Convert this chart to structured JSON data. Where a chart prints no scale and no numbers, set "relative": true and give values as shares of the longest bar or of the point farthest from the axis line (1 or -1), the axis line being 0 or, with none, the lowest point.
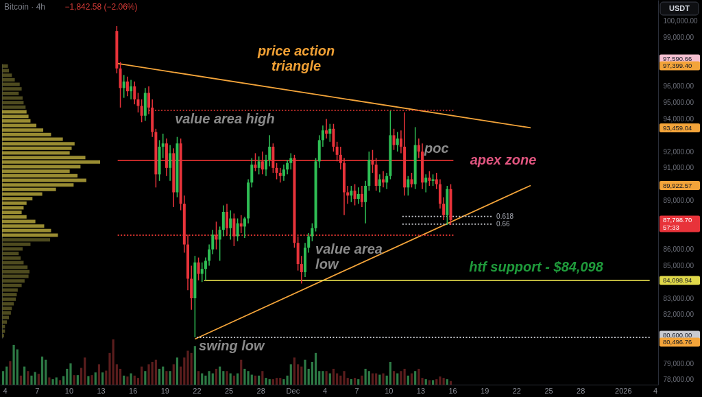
{
  "chart_data": [
    {
      "type": "candlestick",
      "title": "Bitcoin · 4h",
      "subtitle": "−1,842.58 (−2.06%)",
      "ylabel": "USDT",
      "x": [
        "2025-11-14T12:00",
        "2025-11-14T20:00",
        "2025-11-15T04:00",
        "2025-11-15T12:00",
        "2025-11-15T20:00",
        "2025-11-16T04:00",
        "2025-11-16T12:00",
        "2025-11-16T20:00",
        "2025-11-17T04:00",
        "2025-11-17T12:00",
        "2025-11-17T20:00",
        "2025-11-18T04:00",
        "2025-11-18T12:00",
        "2025-11-18T20:00",
        "2025-11-19T04:00",
        "2025-11-19T12:00",
        "2025-11-19T20:00",
        "2025-11-20T04:00",
        "2025-11-20T12:00",
        "2025-11-20T20:00",
        "2025-11-21T04:00",
        "2025-11-21T12:00",
        "2025-11-21T20:00",
        "2025-11-22T04:00",
        "2025-11-22T12:00",
        "2025-11-22T20:00",
        "2025-11-23T04:00",
        "2025-11-23T12:00",
        "2025-11-23T20:00",
        "2025-11-24T04:00",
        "2025-11-24T12:00",
        "2025-11-24T20:00",
        "2025-11-25T04:00",
        "2025-11-25T12:00",
        "2025-11-25T20:00",
        "2025-11-26T04:00",
        "2025-11-26T12:00",
        "2025-11-26T20:00",
        "2025-11-27T04:00",
        "2025-11-27T12:00",
        "2025-11-27T20:00",
        "2025-11-28T04:00",
        "2025-11-28T12:00",
        "2025-11-28T20:00",
        "2025-11-29T04:00",
        "2025-11-29T12:00",
        "2025-11-29T20:00",
        "2025-11-30T04:00",
        "2025-11-30T12:00",
        "2025-11-30T20:00",
        "2025-12-01T04:00",
        "2025-12-01T12:00",
        "2025-12-01T20:00",
        "2025-12-02T04:00",
        "2025-12-02T12:00",
        "2025-12-02T20:00",
        "2025-12-03T04:00",
        "2025-12-03T12:00",
        "2025-12-03T20:00",
        "2025-12-04T04:00",
        "2025-12-04T12:00",
        "2025-12-04T20:00",
        "2025-12-05T04:00",
        "2025-12-05T12:00",
        "2025-12-05T20:00",
        "2025-12-06T04:00",
        "2025-12-06T12:00",
        "2025-12-06T20:00",
        "2025-12-07T04:00",
        "2025-12-07T12:00",
        "2025-12-07T20:00",
        "2025-12-08T04:00",
        "2025-12-08T12:00",
        "2025-12-08T20:00",
        "2025-12-09T04:00",
        "2025-12-09T12:00",
        "2025-12-09T20:00",
        "2025-12-10T04:00",
        "2025-12-10T12:00",
        "2025-12-10T20:00",
        "2025-12-11T04:00",
        "2025-12-11T12:00",
        "2025-12-11T20:00",
        "2025-12-12T04:00",
        "2025-12-12T12:00",
        "2025-12-12T20:00",
        "2025-12-13T04:00",
        "2025-12-13T12:00",
        "2025-12-13T20:00",
        "2025-12-14T04:00",
        "2025-12-14T12:00",
        "2025-12-14T20:00",
        "2025-12-15T04:00",
        "2025-12-15T12:00",
        "2025-12-15T20:00"
      ],
      "ohlc": [
        [
          99400,
          99700,
          96800,
          97100
        ],
        [
          97100,
          97500,
          94700,
          95900
        ],
        [
          95900,
          96700,
          95300,
          96300
        ],
        [
          96300,
          96600,
          95400,
          95700
        ],
        [
          95700,
          96400,
          95200,
          96000
        ],
        [
          96000,
          96300,
          94900,
          95200
        ],
        [
          95200,
          95600,
          94400,
          94800
        ],
        [
          94800,
          95200,
          93800,
          94200
        ],
        [
          94200,
          95900,
          93900,
          95600
        ],
        [
          95600,
          96000,
          94300,
          94700
        ],
        [
          94700,
          95200,
          92900,
          93200
        ],
        [
          93200,
          93400,
          89800,
          90600
        ],
        [
          90600,
          92700,
          90200,
          92300
        ],
        [
          92300,
          93100,
          91600,
          92500
        ],
        [
          92500,
          92800,
          90500,
          91000
        ],
        [
          91000,
          92400,
          90200,
          91900
        ],
        [
          91900,
          92200,
          88600,
          89500
        ],
        [
          89500,
          92900,
          89200,
          92500
        ],
        [
          92500,
          92800,
          88400,
          88800
        ],
        [
          88800,
          89300,
          85800,
          86300
        ],
        [
          86300,
          86900,
          83500,
          84200
        ],
        [
          84200,
          85000,
          82300,
          83000
        ],
        [
          83000,
          85600,
          80600,
          85200
        ],
        [
          85200,
          85500,
          84100,
          84500
        ],
        [
          84500,
          85200,
          84000,
          84800
        ],
        [
          84800,
          85500,
          84100,
          85300
        ],
        [
          85300,
          86300,
          85000,
          86000
        ],
        [
          86000,
          87200,
          85700,
          86900
        ],
        [
          86900,
          87700,
          86000,
          86600
        ],
        [
          86600,
          87400,
          85300,
          87200
        ],
        [
          87200,
          88700,
          86800,
          88300
        ],
        [
          88300,
          88800,
          86900,
          87300
        ],
        [
          87300,
          88400,
          86600,
          87900
        ],
        [
          87900,
          88200,
          86200,
          86800
        ],
        [
          86800,
          87900,
          86500,
          87600
        ],
        [
          87600,
          88100,
          87000,
          87400
        ],
        [
          87400,
          88000,
          86700,
          87900
        ],
        [
          87900,
          90300,
          87600,
          90100
        ],
        [
          90100,
          91600,
          89800,
          91200
        ],
        [
          91200,
          91900,
          90800,
          91000
        ],
        [
          91000,
          91700,
          90600,
          91400
        ],
        [
          91400,
          92000,
          90600,
          90900
        ],
        [
          90900,
          91800,
          90500,
          91500
        ],
        [
          91500,
          93000,
          91100,
          92300
        ],
        [
          92300,
          92500,
          90700,
          91000
        ],
        [
          91000,
          91300,
          90300,
          90700
        ],
        [
          90700,
          91000,
          90100,
          90500
        ],
        [
          90500,
          91200,
          90200,
          90900
        ],
        [
          90900,
          91500,
          90600,
          91300
        ],
        [
          91300,
          91900,
          90900,
          91600
        ],
        [
          91600,
          91800,
          86100,
          86400
        ],
        [
          86400,
          86800,
          84700,
          85100
        ],
        [
          85100,
          85600,
          83900,
          84600
        ],
        [
          84600,
          86400,
          84300,
          86100
        ],
        [
          86100,
          87000,
          85800,
          86800
        ],
        [
          86800,
          87600,
          86500,
          87300
        ],
        [
          87300,
          91600,
          87100,
          91400
        ],
        [
          91400,
          93000,
          91000,
          92700
        ],
        [
          92700,
          93600,
          92300,
          93300
        ],
        [
          93300,
          94000,
          92800,
          93100
        ],
        [
          93100,
          93700,
          92600,
          93400
        ],
        [
          93400,
          93700,
          92000,
          92300
        ],
        [
          92300,
          92600,
          91400,
          91800
        ],
        [
          91800,
          92300,
          90900,
          91300
        ],
        [
          91300,
          91600,
          88100,
          89500
        ],
        [
          89500,
          89900,
          88800,
          89300
        ],
        [
          89300,
          89900,
          88900,
          89600
        ],
        [
          89600,
          90000,
          88700,
          89100
        ],
        [
          89100,
          89800,
          88800,
          89400
        ],
        [
          89400,
          89900,
          88600,
          88900
        ],
        [
          88900,
          90200,
          87600,
          89900
        ],
        [
          89900,
          92000,
          89600,
          91500
        ],
        [
          91500,
          92100,
          90700,
          91200
        ],
        [
          91200,
          91600,
          89600,
          89900
        ],
        [
          89900,
          90600,
          89500,
          90300
        ],
        [
          90300,
          90800,
          89800,
          90100
        ],
        [
          90100,
          90700,
          89700,
          90500
        ],
        [
          90500,
          94500,
          90300,
          93000
        ],
        [
          93000,
          93400,
          92100,
          92400
        ],
        [
          92400,
          93200,
          92000,
          92800
        ],
        [
          92800,
          93300,
          91900,
          92300
        ],
        [
          92300,
          94400,
          89300,
          89800
        ],
        [
          89800,
          90500,
          89300,
          90300
        ],
        [
          90300,
          90700,
          89800,
          90000
        ],
        [
          90000,
          93500,
          89700,
          92400
        ],
        [
          92400,
          92800,
          91600,
          92000
        ],
        [
          92000,
          92500,
          89700,
          90100
        ],
        [
          90100,
          90600,
          89500,
          90400
        ],
        [
          90400,
          90800,
          89900,
          90200
        ],
        [
          90200,
          90600,
          89900,
          90300
        ],
        [
          90300,
          90700,
          89700,
          90000
        ],
        [
          90000,
          90300,
          88500,
          88800
        ],
        [
          88800,
          89200,
          87800,
          88100
        ],
        [
          88100,
          89900,
          87500,
          89700
        ],
        [
          89700,
          90000,
          87500,
          87798.7
        ]
      ],
      "colors": [
        "#e8333a",
        "#e8333a",
        "#2fbf55",
        "#e8333a",
        "#2fbf55",
        "#e8333a",
        "#e8333a",
        "#e8333a",
        "#2fbf55",
        "#e8333a",
        "#e8333a",
        "#e8333a",
        "#2fbf55",
        "#2fbf55",
        "#e8333a",
        "#2fbf55",
        "#e8333a",
        "#2fbf55",
        "#e8333a",
        "#e8333a",
        "#e8333a",
        "#e8333a",
        "#2fbf55",
        "#e8333a",
        "#2fbf55",
        "#2fbf55",
        "#2fbf55",
        "#2fbf55",
        "#e8333a",
        "#2fbf55",
        "#2fbf55",
        "#e8333a",
        "#2fbf55",
        "#e8333a",
        "#2fbf55",
        "#e8333a",
        "#2fbf55",
        "#2fbf55",
        "#2fbf55",
        "#e8333a",
        "#2fbf55",
        "#e8333a",
        "#2fbf55",
        "#2fbf55",
        "#e8333a",
        "#e8333a",
        "#e8333a",
        "#2fbf55",
        "#2fbf55",
        "#2fbf55",
        "#e8333a",
        "#e8333a",
        "#e8333a",
        "#2fbf55",
        "#2fbf55",
        "#2fbf55",
        "#2fbf55",
        "#2fbf55",
        "#2fbf55",
        "#e8333a",
        "#2fbf55",
        "#e8333a",
        "#e8333a",
        "#e8333a",
        "#e8333a",
        "#e8333a",
        "#2fbf55",
        "#e8333a",
        "#2fbf55",
        "#e8333a",
        "#2fbf55",
        "#2fbf55",
        "#e8333a",
        "#e8333a",
        "#2fbf55",
        "#e8333a",
        "#2fbf55",
        "#2fbf55",
        "#e8333a",
        "#2fbf55",
        "#e8333a",
        "#e8333a",
        "#2fbf55",
        "#e8333a",
        "#2fbf55",
        "#e8333a",
        "#e8333a",
        "#2fbf55",
        "#e8333a",
        "#2fbf55",
        "#e8333a",
        "#e8333a",
        "#e8333a",
        "#2fbf55",
        "#e8333a"
      ],
      "series": [
        {
          "type": "line",
          "x": [
            "2025-11-14T14:00",
            "2025-12-23T08:00"
          ],
          "values": [
            97399.4,
            93459.04
          ],
          "color": "#f3a43a",
          "line_style": "solid"
        },
        {
          "type": "line",
          "x": [
            "2025-11-21T20:00",
            "2025-12-23T08:00"
          ],
          "values": [
            80496.76,
            89922.57
          ],
          "color": "#f3a43a",
          "line_style": "solid"
        },
        {
          "type": "line",
          "x": [
            "2025-11-17T12:00",
            "2025-12-16T02:00"
          ],
          "values": [
            94530,
            94530
          ],
          "color": "#d9342f",
          "line_style": "dotted"
        },
        {
          "type": "line",
          "name": "poc",
          "x": [
            "2025-11-14T14:00",
            "2025-12-16T02:00"
          ],
          "values": [
            91460,
            91460
          ],
          "color": "#e5302f",
          "line_style": "solid"
        },
        {
          "type": "line",
          "name": "value area\nlow",
          "x": [
            "2025-11-14T14:00",
            "2025-12-16T02:00"
          ],
          "values": [
            86870,
            86870
          ],
          "color": "#d9342f",
          "line_style": "dotted"
        },
        {
          "type": "line",
          "name": "0.618",
          "x": [
            "2025-12-11T07:00",
            "2025-12-19T16:00"
          ],
          "values": [
            88020,
            88020
          ],
          "color": "#c9cbd1",
          "line_style": "dotted"
        },
        {
          "type": "line",
          "name": "0.66",
          "x": [
            "2025-12-11T07:00",
            "2025-12-19T16:00"
          ],
          "values": [
            87550,
            87550
          ],
          "color": "#c9cbd1",
          "line_style": "dotted"
        },
        {
          "type": "line",
          "name": "htf support - $84,098",
          "x": [
            "2025-11-22T17:00",
            "2026-01-03T12:00"
          ],
          "values": [
            84098.94,
            84098.94
          ],
          "color": "#e0d84a",
          "line_style": "solid"
        },
        {
          "type": "line",
          "name": "swing low",
          "x": [
            "2025-11-22T00:00",
            "2026-01-03T12:00"
          ],
          "values": [
            80600,
            80600
          ],
          "color": "#c9cbd1",
          "line_style": "dotted"
        }
      ],
      "xlim": [
        "2025-11-03T13:00",
        "2026-01-04T07:00"
      ],
      "ylim": [
        77700,
        101300
      ],
      "xticks": [
        {
          "value": "2025-11-04",
          "label": "4"
        },
        {
          "value": "2025-11-07",
          "label": "7"
        },
        {
          "value": "2025-11-10",
          "label": "10"
        },
        {
          "value": "2025-11-13",
          "label": "13"
        },
        {
          "value": "2025-11-16",
          "label": "16"
        },
        {
          "value": "2025-11-19",
          "label": "19"
        },
        {
          "value": "2025-11-22",
          "label": "22"
        },
        {
          "value": "2025-11-25",
          "label": "25"
        },
        {
          "value": "2025-11-28",
          "label": "28"
        },
        {
          "value": "2025-12-01",
          "label": "Dec"
        },
        {
          "value": "2025-12-04",
          "label": "4"
        },
        {
          "value": "2025-12-07",
          "label": "7"
        },
        {
          "value": "2025-12-10",
          "label": "10"
        },
        {
          "value": "2025-12-13",
          "label": "13"
        },
        {
          "value": "2025-12-16",
          "label": "16"
        },
        {
          "value": "2025-12-19",
          "label": "19"
        },
        {
          "value": "2025-12-22",
          "label": "22"
        },
        {
          "value": "2025-12-25",
          "label": "25"
        },
        {
          "value": "2025-12-28",
          "label": "28"
        },
        {
          "value": "2026-01-01",
          "label": "2026"
        },
        {
          "value": "2026-01-04",
          "label": "4"
        }
      ],
      "yticks": [
        {
          "value": 78000,
          "label": "78,000.00"
        },
        {
          "value": 79000,
          "label": "79,000.00"
        },
        {
          "value": 80496.76,
          "label": "80,496.76"
        },
        {
          "value": 80600,
          "label": "80,600.00"
        },
        {
          "value": 82000,
          "label": "82,000.00"
        },
        {
          "value": 83000,
          "label": "83,000.00"
        },
        {
          "value": 84098.94,
          "label": "84,098.94"
        },
        {
          "value": 85000,
          "label": "85,000.00"
        },
        {
          "value": 86000,
          "label": "86,000.00"
        },
        {
          "value": 87798.7,
          "label": "87,798.70\n57:33"
        },
        {
          "value": 89000,
          "label": "89,000.00"
        },
        {
          "value": 89922.57,
          "label": "89,922.57"
        },
        {
          "value": 91000,
          "label": "91,000.00"
        },
        {
          "value": 92000,
          "label": "92,000.00"
        },
        {
          "value": 93459.04,
          "label": "93,459.04"
        },
        {
          "value": 94000,
          "label": "94,000.00"
        },
        {
          "value": 95000,
          "label": "95,000.00"
        },
        {
          "value": 96000,
          "label": "96,000.00"
        },
        {
          "value": 97399.4,
          "label": "97,399.40"
        },
        {
          "value": 97590.66,
          "label": "97,590.66"
        },
        {
          "value": 99000,
          "label": "99,000.00"
        },
        {
          "value": 100000,
          "label": "100,000.00"
        }
      ],
      "annotations": [
        "price action\ntriangle",
        "value area high",
        "apex zone"
      ]
    },
    {
      "type": "bar",
      "relative": true,
      "tick_labels": false,
      "xlim": [
        "2025-11-03T13:00",
        "2026-01-04T07:00"
      ],
      "x": [
        "2025-11-03T20:00",
        "2025-11-04T04:00",
        "2025-11-04T12:00",
        "2025-11-04T20:00",
        "2025-11-05T04:00",
        "2025-11-05T12:00",
        "2025-11-05T20:00",
        "2025-11-06T04:00",
        "2025-11-06T12:00",
        "2025-11-06T20:00",
        "2025-11-07T04:00",
        "2025-11-07T12:00",
        "2025-11-07T20:00",
        "2025-11-08T04:00",
        "2025-11-08T12:00",
        "2025-11-08T20:00",
        "2025-11-09T04:00",
        "2025-11-09T12:00",
        "2025-11-09T20:00",
        "2025-11-10T04:00",
        "2025-11-10T12:00",
        "2025-11-10T20:00",
        "2025-11-11T04:00",
        "2025-11-11T12:00",
        "2025-11-11T20:00",
        "2025-11-12T04:00",
        "2025-11-12T12:00",
        "2025-11-12T20:00",
        "2025-11-13T04:00",
        "2025-11-13T12:00",
        "2025-11-13T20:00",
        "2025-11-14T04:00",
        "2025-11-14T12:00",
        "2025-11-14T20:00",
        "2025-11-15T04:00",
        "2025-11-15T12:00",
        "2025-11-15T20:00",
        "2025-11-16T04:00",
        "2025-11-16T12:00",
        "2025-11-16T20:00",
        "2025-11-17T04:00",
        "2025-11-17T12:00",
        "2025-11-17T20:00",
        "2025-11-18T04:00",
        "2025-11-18T12:00",
        "2025-11-18T20:00",
        "2025-11-19T04:00",
        "2025-11-19T12:00",
        "2025-11-19T20:00",
        "2025-11-20T04:00",
        "2025-11-20T12:00",
        "2025-11-20T20:00",
        "2025-11-21T04:00",
        "2025-11-21T12:00",
        "2025-11-21T20:00",
        "2025-11-22T04:00",
        "2025-11-22T12:00",
        "2025-11-22T20:00",
        "2025-11-23T04:00",
        "2025-11-23T12:00",
        "2025-11-23T20:00",
        "2025-11-24T04:00",
        "2025-11-24T12:00",
        "2025-11-24T20:00",
        "2025-11-25T04:00",
        "2025-11-25T12:00",
        "2025-11-25T20:00",
        "2025-11-26T04:00",
        "2025-11-26T12:00",
        "2025-11-26T20:00",
        "2025-11-27T04:00",
        "2025-11-27T12:00",
        "2025-11-27T20:00",
        "2025-11-28T04:00",
        "2025-11-28T12:00",
        "2025-11-28T20:00",
        "2025-11-29T04:00",
        "2025-11-29T12:00",
        "2025-11-29T20:00",
        "2025-11-30T04:00",
        "2025-11-30T12:00",
        "2025-11-30T20:00",
        "2025-12-01T04:00",
        "2025-12-01T12:00",
        "2025-12-01T20:00",
        "2025-12-02T04:00",
        "2025-12-02T12:00",
        "2025-12-02T20:00",
        "2025-12-03T04:00",
        "2025-12-03T12:00",
        "2025-12-03T20:00",
        "2025-12-04T04:00",
        "2025-12-04T12:00",
        "2025-12-04T20:00",
        "2025-12-05T04:00",
        "2025-12-05T12:00",
        "2025-12-05T20:00",
        "2025-12-06T04:00",
        "2025-12-06T12:00",
        "2025-12-06T20:00",
        "2025-12-07T04:00",
        "2025-12-07T12:00",
        "2025-12-07T20:00",
        "2025-12-08T04:00",
        "2025-12-08T12:00",
        "2025-12-08T20:00",
        "2025-12-09T04:00",
        "2025-12-09T12:00",
        "2025-12-09T20:00",
        "2025-12-10T04:00",
        "2025-12-10T12:00",
        "2025-12-10T20:00",
        "2025-12-11T04:00",
        "2025-12-11T12:00",
        "2025-12-11T20:00",
        "2025-12-12T04:00",
        "2025-12-12T12:00",
        "2025-12-12T20:00",
        "2025-12-13T04:00",
        "2025-12-13T12:00",
        "2025-12-13T20:00",
        "2025-12-14T04:00",
        "2025-12-14T12:00",
        "2025-12-14T20:00",
        "2025-12-15T04:00",
        "2025-12-15T12:00",
        "2025-12-15T20:00"
      ],
      "values": [
        0.3,
        0.4,
        0.52,
        0.88,
        0.78,
        0.2,
        0.4,
        0.3,
        0.2,
        0.28,
        0.24,
        0.62,
        0.55,
        0.16,
        0.12,
        0.16,
        0.1,
        0.19,
        0.35,
        0.47,
        0.21,
        0.21,
        0.37,
        0.6,
        0.19,
        0.21,
        0.27,
        0.45,
        0.27,
        0.31,
        0.7,
        1,
        0.45,
        0.35,
        0.2,
        0.18,
        0.25,
        0.2,
        0.15,
        0.4,
        0.3,
        0.45,
        0.5,
        0.55,
        0.35,
        0.4,
        0.3,
        0.3,
        0.45,
        0.6,
        0.4,
        0.6,
        0.75,
        0.7,
        0.85,
        0.3,
        0.25,
        0.2,
        0.3,
        0.25,
        0.35,
        0.4,
        0.3,
        0.3,
        0.25,
        0.2,
        0.25,
        0.55,
        0.35,
        0.3,
        0.22,
        0.2,
        0.2,
        0.3,
        0.15,
        0.12,
        0.12,
        0.15,
        0.15,
        0.12,
        0.2,
        0.45,
        0.6,
        0.45,
        0.4,
        0.55,
        0.35,
        0.5,
        0.7,
        0.3,
        0.3,
        0.3,
        0.25,
        0.35,
        0.25,
        0.2,
        0.3,
        0.15,
        0.12,
        0.15,
        0.12,
        0.2,
        0.35,
        0.3,
        0.25,
        0.25,
        0.22,
        0.25,
        0.2,
        0.5,
        0.3,
        0.25,
        0.3,
        0.35,
        0.2,
        0.25,
        0.3,
        0.35,
        0.15,
        0.12,
        0.1,
        0.1,
        0.12,
        0.18,
        0.15,
        0.12,
        0.08
      ],
      "colors": [
        "#2d7a45",
        "#2d7a45",
        "#5b1d1d",
        "#2d7a45",
        "#2d7a45",
        "#5b1d1d",
        "#2d7a45",
        "#5b1d1d",
        "#2d7a45",
        "#2d7a45",
        "#5b1d1d",
        "#2d7a45",
        "#2d7a45",
        "#5b1d1d",
        "#2d7a45",
        "#2d7a45",
        "#5b1d1d",
        "#2d7a45",
        "#2d7a45",
        "#2d7a45",
        "#5b1d1d",
        "#2d7a45",
        "#5b1d1d",
        "#5b1d1d",
        "#2d7a45",
        "#5b1d1d",
        "#2d7a45",
        "#5b1d1d",
        "#2d7a45",
        "#5b1d1d",
        "#5b1d1d",
        "#5b1d1d",
        "#5b1d1d",
        "#5b1d1d",
        "#2d7a45",
        "#5b1d1d",
        "#2d7a45",
        "#5b1d1d",
        "#5b1d1d",
        "#5b1d1d",
        "#2d7a45",
        "#5b1d1d",
        "#5b1d1d",
        "#5b1d1d",
        "#2d7a45",
        "#2d7a45",
        "#5b1d1d",
        "#2d7a45",
        "#5b1d1d",
        "#2d7a45",
        "#5b1d1d",
        "#5b1d1d",
        "#5b1d1d",
        "#5b1d1d",
        "#2d7a45",
        "#5b1d1d",
        "#2d7a45",
        "#2d7a45",
        "#2d7a45",
        "#2d7a45",
        "#5b1d1d",
        "#2d7a45",
        "#2d7a45",
        "#5b1d1d",
        "#2d7a45",
        "#5b1d1d",
        "#2d7a45",
        "#5b1d1d",
        "#2d7a45",
        "#2d7a45",
        "#2d7a45",
        "#5b1d1d",
        "#2d7a45",
        "#5b1d1d",
        "#2d7a45",
        "#2d7a45",
        "#5b1d1d",
        "#5b1d1d",
        "#5b1d1d",
        "#2d7a45",
        "#2d7a45",
        "#2d7a45",
        "#5b1d1d",
        "#5b1d1d",
        "#5b1d1d",
        "#2d7a45",
        "#2d7a45",
        "#2d7a45",
        "#2d7a45",
        "#2d7a45",
        "#2d7a45",
        "#5b1d1d",
        "#2d7a45",
        "#5b1d1d",
        "#5b1d1d",
        "#5b1d1d",
        "#5b1d1d",
        "#5b1d1d",
        "#2d7a45",
        "#5b1d1d",
        "#2d7a45",
        "#5b1d1d",
        "#2d7a45",
        "#2d7a45",
        "#5b1d1d",
        "#5b1d1d",
        "#2d7a45",
        "#5b1d1d",
        "#2d7a45",
        "#2d7a45",
        "#5b1d1d",
        "#2d7a45",
        "#5b1d1d",
        "#5b1d1d",
        "#2d7a45",
        "#5b1d1d",
        "#2d7a45",
        "#5b1d1d",
        "#5b1d1d",
        "#2d7a45",
        "#5b1d1d",
        "#2d7a45",
        "#5b1d1d",
        "#5b1d1d",
        "#5b1d1d",
        "#2d7a45",
        "#5b1d1d"
      ]
    },
    {
      "type": "bar",
      "orientation": "horizontal",
      "relative": true,
      "categories": [
        null,
        null,
        null,
        null,
        null,
        null,
        null,
        null,
        null,
        null,
        null,
        null,
        null,
        null,
        null,
        null,
        null,
        null,
        null,
        null,
        null,
        null,
        null,
        null,
        null,
        null,
        null,
        null,
        null,
        null,
        null,
        null,
        null,
        null,
        null,
        null,
        null,
        null,
        null,
        null,
        null,
        null,
        null,
        null,
        null,
        null,
        null,
        null,
        null,
        null,
        null,
        null,
        null,
        null,
        null,
        null,
        null,
        null,
        null,
        null
      ],
      "values": [
        0.06,
        0.07,
        0.1,
        0.13,
        0.18,
        0.2,
        0.17,
        0.21,
        0.22,
        0.24,
        0.25,
        0.27,
        0.29,
        0.35,
        0.42,
        0.5,
        0.62,
        0.74,
        0.71,
        0.69,
        0.85,
        1,
        0.8,
        0.69,
        0.77,
        0.86,
        0.73,
        0.55,
        0.41,
        0.31,
        0.25,
        0.22,
        0.2,
        0.25,
        0.34,
        0.43,
        0.5,
        0.57,
        0.49,
        0.29,
        0.21,
        0.17,
        0.19,
        0.22,
        0.26,
        0.28,
        0.27,
        0.23,
        0.2,
        0.16,
        0.15,
        0.14,
        0.12,
        0.1,
        0.09,
        0.07,
        0.05,
        0.03,
        0.03,
        0.02
      ],
      "colors": [
        "#5c5824",
        "#5c5824",
        "#5c5824",
        "#5c5824",
        "#5c5824",
        "#5c5824",
        "#5c5824",
        "#5c5824",
        "#5c5824",
        "#5c5824",
        "#b4a53b",
        "#b4a53b",
        "#b4a53b",
        "#b4a53b",
        "#b4a53b",
        "#b4a53b",
        "#b4a53b",
        "#b4a53b",
        "#b4a53b",
        "#b4a53b",
        "#b4a53b",
        "#b4a53b",
        "#b4a53b",
        "#b4a53b",
        "#b4a53b",
        "#b4a53b",
        "#b4a53b",
        "#b4a53b",
        "#b4a53b",
        "#b4a53b",
        "#b4a53b",
        "#b4a53b",
        "#b4a53b",
        "#b4a53b",
        "#b4a53b",
        "#b4a53b",
        "#b4a53b",
        "#b4a53b",
        "#5c5824",
        "#5c5824",
        "#5c5824",
        "#5c5824",
        "#5c5824",
        "#5c5824",
        "#5c5824",
        "#5c5824",
        "#5c5824",
        "#5c5824",
        "#5c5824",
        "#5c5824",
        "#5c5824",
        "#5c5824",
        "#5c5824",
        "#5c5824",
        "#5c5824",
        "#5c5824",
        "#5c5824",
        "#5c5824",
        "#5c5824",
        "#5c5824"
      ]
    }
  ]
}
